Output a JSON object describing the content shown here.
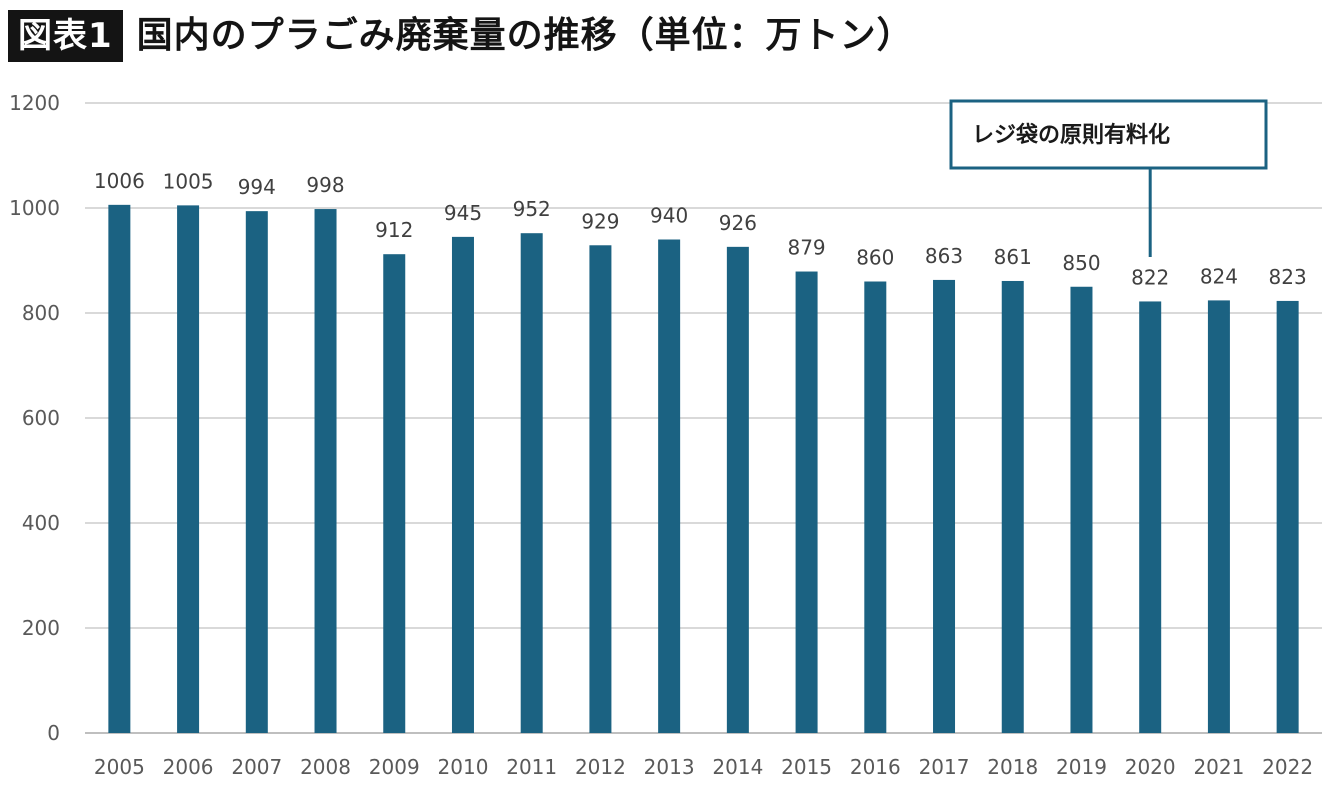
{
  "header": {
    "badge": "図表1",
    "title": "国内のプラごみ廃棄量の推移（単位：万トン）"
  },
  "chart_data": {
    "type": "bar",
    "title": "国内のプラごみ廃棄量の推移（単位：万トン）",
    "xlabel": "",
    "ylabel": "",
    "unit": "万トン",
    "ylim": [
      0,
      1200
    ],
    "yticks": [
      0,
      200,
      400,
      600,
      800,
      1000,
      1200
    ],
    "grid": true,
    "legend": "none",
    "bar_color": "#1b6282",
    "categories": [
      "2005",
      "2006",
      "2007",
      "2008",
      "2009",
      "2010",
      "2011",
      "2012",
      "2013",
      "2014",
      "2015",
      "2016",
      "2017",
      "2018",
      "2019",
      "2020",
      "2021",
      "2022"
    ],
    "values": [
      1006,
      1005,
      994,
      998,
      912,
      945,
      952,
      929,
      940,
      926,
      879,
      860,
      863,
      861,
      850,
      822,
      824,
      823
    ],
    "annotations": [
      {
        "text": "レジ袋の原則有料化",
        "category": "2020"
      }
    ]
  }
}
